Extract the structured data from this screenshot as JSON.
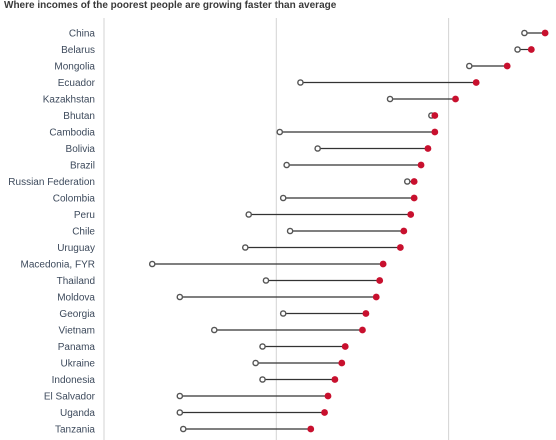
{
  "chart_data": {
    "type": "dumbbell",
    "title": "Where incomes of the poorest people are growing faster than average",
    "xlabel": "",
    "ylabel": "",
    "grid": true,
    "legend": "none",
    "colors": {
      "average": "#555555",
      "poorest": "#c8102e",
      "connector": "#333333"
    },
    "series": [
      {
        "role": "average"
      },
      {
        "role": "poorest"
      }
    ],
    "categories": [
      "China",
      "Belarus",
      "Mongolia",
      "Ecuador",
      "Kazakhstan",
      "Bhutan",
      "Cambodia",
      "Bolivia",
      "Brazil",
      "Russian Federation",
      "Colombia",
      "Peru",
      "Chile",
      "Uruguay",
      "Macedonia, FYR",
      "Thailand",
      "Moldova",
      "Georgia",
      "Vietnam",
      "Panama",
      "Ukraine",
      "Indonesia",
      "El Salvador",
      "Uganda",
      "Tanzania"
    ],
    "average": [
      8.2,
      8.0,
      6.6,
      1.7,
      4.3,
      5.5,
      1.1,
      2.2,
      1.3,
      4.8,
      1.2,
      0.2,
      1.4,
      0.1,
      -2.6,
      0.7,
      -1.8,
      1.2,
      -0.8,
      0.6,
      0.4,
      0.6,
      -1.8,
      -1.8,
      -1.7
    ],
    "poorest": [
      8.8,
      8.4,
      7.7,
      6.8,
      6.2,
      5.6,
      5.6,
      5.4,
      5.2,
      5.0,
      5.0,
      4.9,
      4.7,
      4.6,
      4.1,
      4.0,
      3.9,
      3.6,
      3.5,
      3.0,
      2.9,
      2.7,
      2.5,
      2.4,
      2.0
    ]
  }
}
